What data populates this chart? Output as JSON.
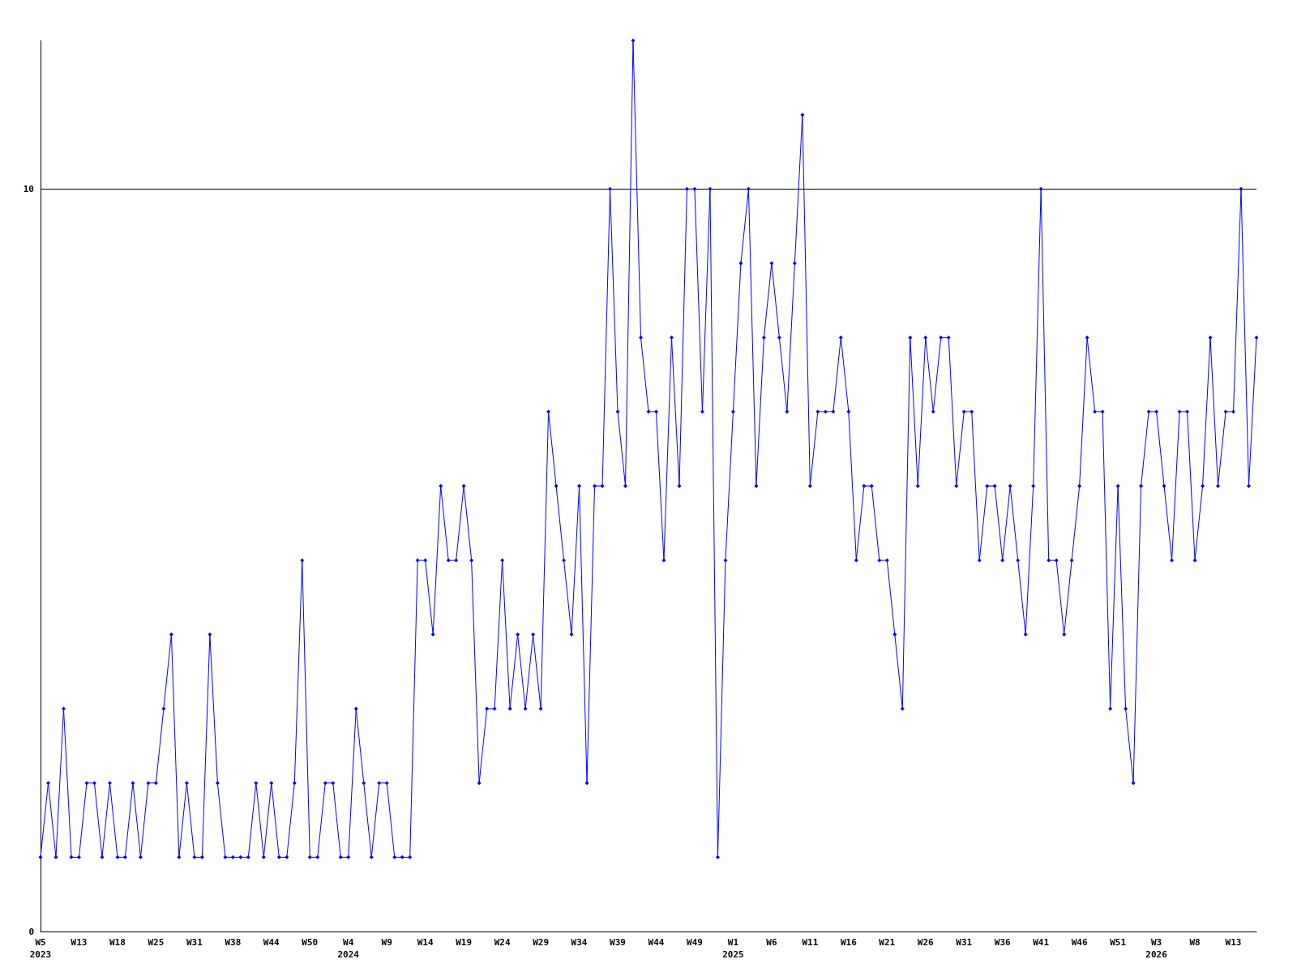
{
  "chart_data": {
    "type": "line",
    "categories": [
      "W5\n2023",
      null,
      null,
      null,
      null,
      "W13",
      null,
      null,
      null,
      null,
      "W18",
      null,
      null,
      null,
      null,
      "W25",
      null,
      null,
      null,
      null,
      "W31",
      null,
      null,
      null,
      null,
      "W38",
      null,
      null,
      null,
      null,
      "W44",
      null,
      null,
      null,
      null,
      "W50",
      null,
      null,
      null,
      null,
      "W4\n2024",
      null,
      null,
      null,
      null,
      "W9",
      null,
      null,
      null,
      null,
      "W14",
      null,
      null,
      null,
      null,
      "W19",
      null,
      null,
      null,
      null,
      "W24",
      null,
      null,
      null,
      null,
      "W29",
      null,
      null,
      null,
      null,
      "W34",
      null,
      null,
      null,
      null,
      "W39",
      null,
      null,
      null,
      null,
      "W44",
      null,
      null,
      null,
      null,
      "W49",
      null,
      null,
      null,
      null,
      "W1\n2025",
      null,
      null,
      null,
      null,
      "W6",
      null,
      null,
      null,
      null,
      "W11",
      null,
      null,
      null,
      null,
      "W16",
      null,
      null,
      null,
      null,
      "W21",
      null,
      null,
      null,
      null,
      "W26",
      null,
      null,
      null,
      null,
      "W31",
      null,
      null,
      null,
      null,
      "W36",
      null,
      null,
      null,
      null,
      "W41",
      null,
      null,
      null,
      null,
      "W46",
      null,
      null,
      null,
      null,
      "W51",
      null,
      null,
      null,
      null,
      "W3\n2026",
      null,
      null,
      null,
      null,
      "W8",
      null,
      null,
      null,
      null,
      "W13",
      null,
      null,
      null
    ],
    "series": [
      {
        "color": "#0000ff",
        "values": [
          1,
          2,
          1,
          3,
          1,
          1,
          2,
          2,
          1,
          2,
          1,
          1,
          2,
          1,
          2,
          2,
          3,
          4,
          1,
          2,
          1,
          1,
          4,
          2,
          1,
          1,
          1,
          1,
          2,
          1,
          2,
          1,
          1,
          2,
          5,
          1,
          1,
          2,
          2,
          1,
          1,
          3,
          2,
          1,
          2,
          2,
          1,
          1,
          1,
          5,
          5,
          4,
          6,
          5,
          5,
          6,
          5,
          2,
          3,
          3,
          5,
          3,
          4,
          3,
          4,
          3,
          7,
          6,
          5,
          4,
          6,
          2,
          6,
          6,
          10,
          7,
          6,
          12,
          8,
          7,
          7,
          5,
          8,
          6,
          10,
          10,
          7,
          10,
          1,
          5,
          7,
          9,
          10,
          6,
          8,
          9,
          8,
          7,
          9,
          11,
          6,
          7,
          7,
          7,
          8,
          7,
          5,
          6,
          6,
          5,
          5,
          4,
          3,
          8,
          6,
          8,
          7,
          8,
          8,
          6,
          7,
          7,
          5,
          6,
          6,
          5,
          6,
          5,
          4,
          6,
          10,
          5,
          5,
          4,
          5,
          6,
          8,
          7,
          7,
          3,
          6,
          3,
          2,
          6,
          7,
          7,
          6,
          5,
          7,
          7,
          5,
          6,
          8,
          6,
          7,
          7,
          10,
          6,
          8
        ]
      }
    ],
    "ylim": [
      0,
      12
    ],
    "yticks": [
      0,
      10
    ],
    "grid": "y",
    "marker": "diamond",
    "line_style": "solid"
  }
}
